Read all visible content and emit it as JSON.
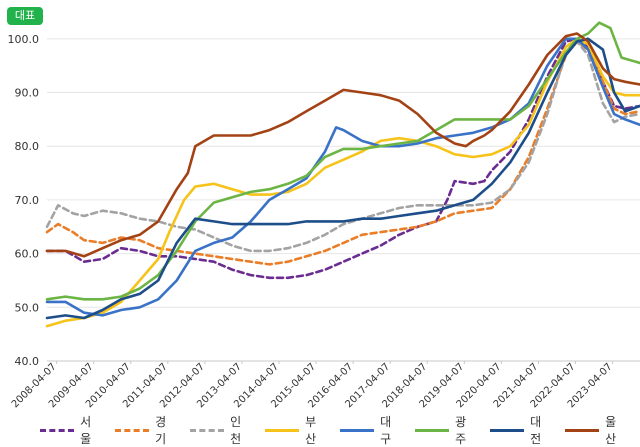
{
  "badge": {
    "label": "대표"
  },
  "chart_data": {
    "type": "line",
    "title": "",
    "xlabel": "",
    "ylabel": "",
    "ylim": [
      40,
      105
    ],
    "yticks": [
      "40.0",
      "50.0",
      "60.0",
      "70.0",
      "80.0",
      "90.0",
      "100.0"
    ],
    "xticks": [
      "2008-04-07",
      "2009-04-07",
      "2010-04-07",
      "2011-04-07",
      "2012-04-07",
      "2013-04-07",
      "2014-04-07",
      "2015-04-07",
      "2016-04-07",
      "2017-04-07",
      "2018-04-07",
      "2019-04-07",
      "2020-04-07",
      "2021-04-07",
      "2022-04-07",
      "2023-04-07"
    ],
    "grid": true,
    "legend": "bottom",
    "x_start": 2008.0,
    "x_end": 2024.0,
    "series": [
      {
        "name": "서울",
        "color": "#6a2c91",
        "dash": true,
        "x": [
          2008.0,
          2008.5,
          2009.0,
          2009.5,
          2010.0,
          2010.5,
          2011.0,
          2011.5,
          2012.0,
          2012.5,
          2013.0,
          2013.5,
          2014.0,
          2014.5,
          2015.0,
          2015.5,
          2016.0,
          2016.5,
          2017.0,
          2017.5,
          2018.0,
          2018.5,
          2018.8,
          2019.0,
          2019.5,
          2019.8,
          2020.0,
          2020.5,
          2021.0,
          2021.5,
          2022.0,
          2022.3,
          2022.6,
          2023.0,
          2023.3,
          2023.6,
          2024.0
        ],
        "y": [
          60.5,
          60.5,
          58.5,
          59.0,
          61.0,
          60.5,
          59.5,
          59.5,
          59.0,
          58.5,
          57.0,
          56.0,
          55.5,
          55.5,
          56.0,
          57.0,
          58.5,
          60.0,
          61.5,
          63.5,
          65.0,
          66.0,
          70.0,
          73.5,
          73.0,
          73.5,
          75.5,
          79.0,
          85.0,
          93.0,
          99.5,
          100.0,
          98.5,
          92.0,
          87.5,
          87.0,
          87.5
        ]
      },
      {
        "name": "경기",
        "color": "#ea7d27",
        "dash": true,
        "x": [
          2008.0,
          2008.3,
          2008.7,
          2009.0,
          2009.5,
          2010.0,
          2010.5,
          2011.0,
          2011.5,
          2012.0,
          2012.5,
          2013.0,
          2013.5,
          2014.0,
          2014.5,
          2015.0,
          2015.5,
          2016.0,
          2016.5,
          2017.0,
          2017.5,
          2018.0,
          2018.5,
          2019.0,
          2019.5,
          2020.0,
          2020.5,
          2021.0,
          2021.5,
          2022.0,
          2022.3,
          2022.6,
          2023.0,
          2023.3,
          2023.6,
          2024.0
        ],
        "y": [
          64.0,
          65.5,
          64.0,
          62.5,
          62.0,
          63.0,
          62.5,
          61.0,
          60.5,
          60.0,
          59.5,
          59.0,
          58.5,
          58.0,
          58.5,
          59.5,
          60.5,
          62.0,
          63.5,
          64.0,
          64.5,
          65.0,
          66.0,
          67.5,
          68.0,
          68.5,
          72.0,
          78.0,
          87.0,
          97.0,
          99.5,
          98.0,
          92.0,
          87.0,
          86.0,
          86.5
        ]
      },
      {
        "name": "인천",
        "color": "#a3a3a3",
        "dash": true,
        "x": [
          2008.0,
          2008.3,
          2008.7,
          2009.0,
          2009.5,
          2010.0,
          2010.5,
          2011.0,
          2011.5,
          2012.0,
          2012.5,
          2013.0,
          2013.5,
          2014.0,
          2014.5,
          2015.0,
          2015.5,
          2016.0,
          2016.5,
          2017.0,
          2017.5,
          2018.0,
          2018.5,
          2019.0,
          2019.5,
          2020.0,
          2020.5,
          2021.0,
          2021.5,
          2022.0,
          2022.3,
          2022.6,
          2023.0,
          2023.3,
          2023.6,
          2024.0
        ],
        "y": [
          65.0,
          69.0,
          67.5,
          67.0,
          68.0,
          67.5,
          66.5,
          66.0,
          65.0,
          64.5,
          63.0,
          61.5,
          60.5,
          60.5,
          61.0,
          62.0,
          63.5,
          65.5,
          66.5,
          67.5,
          68.5,
          69.0,
          69.0,
          69.0,
          69.0,
          69.5,
          72.0,
          77.0,
          86.0,
          97.5,
          99.5,
          97.0,
          88.0,
          84.5,
          85.5,
          86.0
        ]
      },
      {
        "name": "부산",
        "color": "#f6c31a",
        "dash": false,
        "x": [
          2008.0,
          2008.5,
          2009.0,
          2009.5,
          2010.0,
          2010.5,
          2011.0,
          2011.3,
          2011.7,
          2012.0,
          2012.5,
          2013.0,
          2013.5,
          2014.0,
          2014.5,
          2015.0,
          2015.5,
          2016.0,
          2016.5,
          2017.0,
          2017.5,
          2018.0,
          2018.5,
          2019.0,
          2019.5,
          2020.0,
          2020.5,
          2021.0,
          2021.5,
          2022.0,
          2022.3,
          2022.6,
          2023.0,
          2023.3,
          2023.6,
          2024.0
        ],
        "y": [
          46.5,
          47.5,
          48.0,
          49.0,
          51.0,
          55.0,
          59.0,
          64.0,
          70.0,
          72.5,
          73.0,
          72.0,
          71.0,
          71.0,
          71.5,
          73.0,
          76.0,
          77.5,
          79.0,
          81.0,
          81.5,
          81.0,
          80.0,
          78.5,
          78.0,
          78.5,
          80.0,
          84.0,
          92.0,
          98.5,
          100.0,
          99.0,
          93.0,
          90.0,
          89.5,
          89.5
        ]
      },
      {
        "name": "대구",
        "color": "#3a72c7",
        "dash": false,
        "x": [
          2008.0,
          2008.5,
          2009.0,
          2009.5,
          2010.0,
          2010.5,
          2011.0,
          2011.5,
          2012.0,
          2012.5,
          2013.0,
          2013.5,
          2014.0,
          2014.5,
          2015.0,
          2015.5,
          2015.8,
          2016.0,
          2016.5,
          2017.0,
          2017.5,
          2018.0,
          2018.5,
          2019.0,
          2019.5,
          2020.0,
          2020.5,
          2021.0,
          2021.5,
          2022.0,
          2022.3,
          2022.6,
          2023.0,
          2023.3,
          2023.6,
          2024.0
        ],
        "y": [
          51.0,
          51.0,
          49.0,
          48.5,
          49.5,
          50.0,
          51.5,
          55.0,
          60.5,
          62.0,
          63.0,
          66.0,
          70.0,
          72.0,
          74.0,
          79.0,
          83.5,
          83.0,
          81.0,
          80.0,
          80.0,
          80.5,
          81.5,
          82.0,
          82.5,
          83.5,
          85.0,
          88.0,
          95.0,
          100.0,
          100.0,
          98.0,
          91.0,
          86.0,
          85.0,
          84.0
        ]
      },
      {
        "name": "광주",
        "color": "#6cb544",
        "dash": false,
        "x": [
          2008.0,
          2008.5,
          2009.0,
          2009.5,
          2010.0,
          2010.5,
          2011.0,
          2011.5,
          2012.0,
          2012.5,
          2013.0,
          2013.5,
          2014.0,
          2014.5,
          2015.0,
          2015.5,
          2016.0,
          2016.5,
          2017.0,
          2017.5,
          2018.0,
          2018.5,
          2019.0,
          2019.5,
          2020.0,
          2020.5,
          2021.0,
          2021.5,
          2022.0,
          2022.3,
          2022.6,
          2022.9,
          2023.2,
          2023.5,
          2024.0
        ],
        "y": [
          51.5,
          52.0,
          51.5,
          51.5,
          52.0,
          53.5,
          56.0,
          60.5,
          66.0,
          69.5,
          70.5,
          71.5,
          72.0,
          73.0,
          74.5,
          78.0,
          79.5,
          79.5,
          80.0,
          80.5,
          81.0,
          83.0,
          85.0,
          85.0,
          85.0,
          85.0,
          87.5,
          92.5,
          97.5,
          100.0,
          101.0,
          103.0,
          102.0,
          96.5,
          95.5
        ]
      },
      {
        "name": "대전",
        "color": "#1d4e89",
        "dash": false,
        "x": [
          2008.0,
          2008.5,
          2009.0,
          2009.5,
          2010.0,
          2010.5,
          2011.0,
          2011.5,
          2012.0,
          2012.5,
          2013.0,
          2013.5,
          2014.0,
          2014.5,
          2015.0,
          2015.5,
          2016.0,
          2016.5,
          2017.0,
          2017.5,
          2018.0,
          2018.5,
          2019.0,
          2019.5,
          2020.0,
          2020.5,
          2021.0,
          2021.5,
          2022.0,
          2022.3,
          2022.6,
          2023.0,
          2023.3,
          2023.6,
          2024.0
        ],
        "y": [
          48.0,
          48.5,
          48.0,
          49.5,
          51.5,
          52.5,
          55.0,
          62.0,
          66.5,
          66.0,
          65.5,
          65.5,
          65.5,
          65.5,
          66.0,
          66.0,
          66.0,
          66.5,
          66.5,
          67.0,
          67.5,
          68.0,
          69.0,
          70.0,
          73.0,
          77.0,
          82.5,
          90.0,
          97.0,
          99.5,
          100.0,
          98.0,
          90.0,
          86.5,
          87.5
        ]
      },
      {
        "name": "울산",
        "color": "#a34315",
        "dash": false,
        "x": [
          2008.0,
          2008.5,
          2009.0,
          2009.5,
          2010.0,
          2010.5,
          2011.0,
          2011.5,
          2011.8,
          2012.0,
          2012.5,
          2013.0,
          2013.5,
          2014.0,
          2014.5,
          2015.0,
          2015.5,
          2016.0,
          2016.5,
          2017.0,
          2017.5,
          2018.0,
          2018.5,
          2019.0,
          2019.3,
          2019.5,
          2019.8,
          2020.0,
          2020.5,
          2021.0,
          2021.5,
          2022.0,
          2022.3,
          2022.6,
          2023.0,
          2023.3,
          2023.6,
          2024.0
        ],
        "y": [
          60.5,
          60.5,
          59.5,
          61.0,
          62.5,
          63.5,
          66.0,
          72.0,
          75.0,
          80.0,
          82.0,
          82.0,
          82.0,
          83.0,
          84.5,
          86.5,
          88.5,
          90.5,
          90.0,
          89.5,
          88.5,
          86.0,
          82.5,
          80.5,
          80.0,
          81.0,
          82.0,
          83.0,
          86.5,
          91.5,
          97.0,
          100.5,
          101.0,
          99.5,
          94.5,
          92.5,
          92.0,
          91.5
        ]
      }
    ]
  }
}
